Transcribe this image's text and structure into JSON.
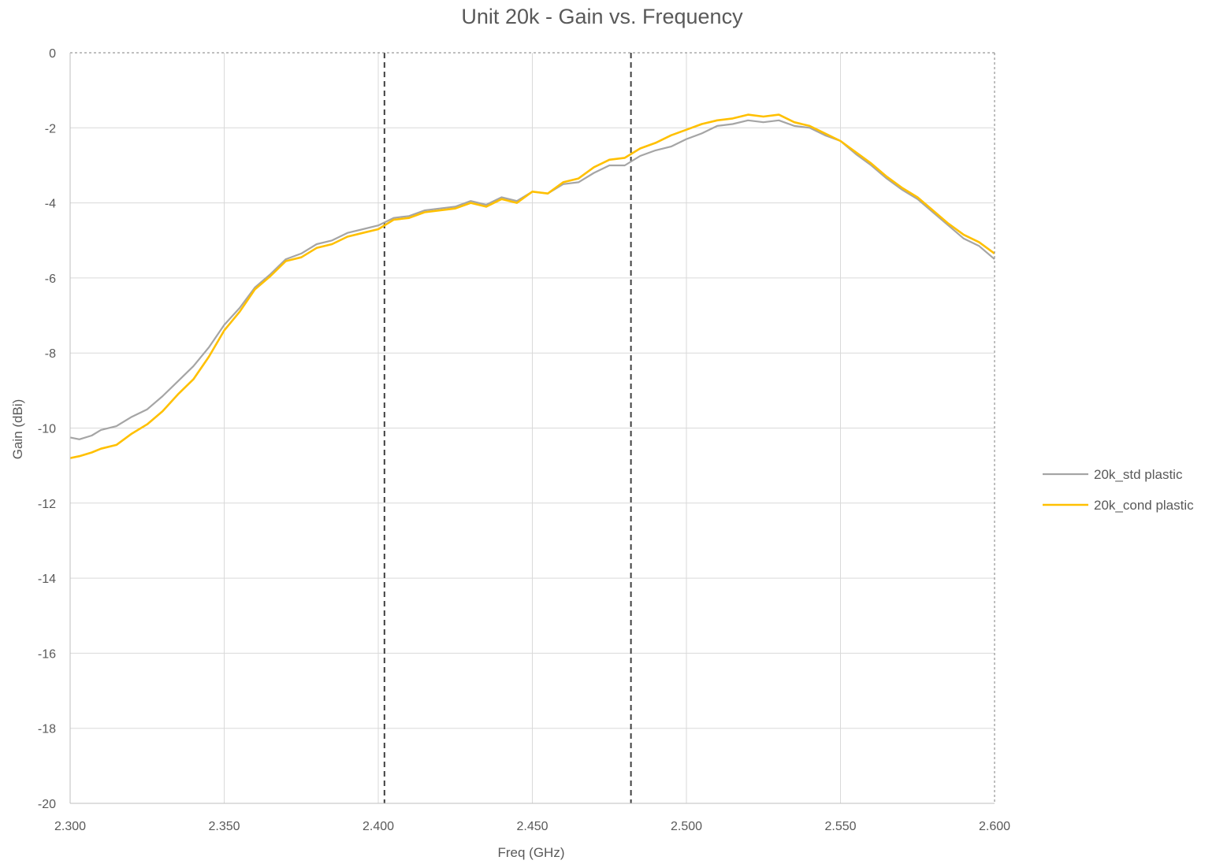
{
  "chart_data": {
    "type": "line",
    "title": "Unit 20k - Gain vs. Frequency",
    "xlabel": "Freq (GHz)",
    "ylabel": "Gain (dBi)",
    "xlim": [
      2.3,
      2.6
    ],
    "ylim": [
      -20,
      0
    ],
    "x_ticks": [
      "2.300",
      "2.350",
      "2.400",
      "2.450",
      "2.500",
      "2.550",
      "2.600"
    ],
    "y_ticks": [
      "0",
      "-2",
      "-4",
      "-6",
      "-8",
      "-10",
      "-12",
      "-14",
      "-16",
      "-18",
      "-20"
    ],
    "grid": true,
    "legend_position": "right",
    "markers_dashed_vertical_x": [
      2.402,
      2.482
    ],
    "series": [
      {
        "name": "20k_std plastic",
        "color": "#a5a5a5",
        "x": [
          2.3,
          2.303,
          2.307,
          2.31,
          2.315,
          2.32,
          2.325,
          2.33,
          2.335,
          2.34,
          2.345,
          2.35,
          2.355,
          2.36,
          2.365,
          2.37,
          2.375,
          2.38,
          2.385,
          2.39,
          2.395,
          2.4,
          2.405,
          2.41,
          2.415,
          2.42,
          2.425,
          2.43,
          2.435,
          2.44,
          2.445,
          2.45,
          2.455,
          2.46,
          2.465,
          2.47,
          2.475,
          2.48,
          2.485,
          2.49,
          2.495,
          2.5,
          2.505,
          2.51,
          2.515,
          2.52,
          2.525,
          2.53,
          2.535,
          2.54,
          2.545,
          2.55,
          2.555,
          2.56,
          2.565,
          2.57,
          2.575,
          2.58,
          2.585,
          2.59,
          2.595,
          2.6
        ],
        "y": [
          -10.25,
          -10.3,
          -10.2,
          -10.05,
          -9.95,
          -9.7,
          -9.5,
          -9.15,
          -8.75,
          -8.35,
          -7.85,
          -7.25,
          -6.8,
          -6.25,
          -5.9,
          -5.5,
          -5.35,
          -5.1,
          -5.0,
          -4.8,
          -4.7,
          -4.6,
          -4.4,
          -4.35,
          -4.2,
          -4.15,
          -4.1,
          -3.95,
          -4.05,
          -3.85,
          -3.95,
          -3.7,
          -3.75,
          -3.5,
          -3.45,
          -3.2,
          -3.0,
          -3.0,
          -2.75,
          -2.6,
          -2.5,
          -2.3,
          -2.15,
          -1.95,
          -1.9,
          -1.8,
          -1.85,
          -1.8,
          -1.95,
          -2.0,
          -2.2,
          -2.35,
          -2.7,
          -3.0,
          -3.35,
          -3.65,
          -3.9,
          -4.25,
          -4.6,
          -4.95,
          -5.15,
          -5.5
        ]
      },
      {
        "name": "20k_cond plastic",
        "color": "#ffc000",
        "x": [
          2.3,
          2.303,
          2.307,
          2.31,
          2.315,
          2.32,
          2.325,
          2.33,
          2.335,
          2.34,
          2.345,
          2.35,
          2.355,
          2.36,
          2.365,
          2.37,
          2.375,
          2.38,
          2.385,
          2.39,
          2.395,
          2.4,
          2.405,
          2.41,
          2.415,
          2.42,
          2.425,
          2.43,
          2.435,
          2.44,
          2.445,
          2.45,
          2.455,
          2.46,
          2.465,
          2.47,
          2.475,
          2.48,
          2.485,
          2.49,
          2.495,
          2.5,
          2.505,
          2.51,
          2.515,
          2.52,
          2.525,
          2.53,
          2.535,
          2.54,
          2.545,
          2.55,
          2.555,
          2.56,
          2.565,
          2.57,
          2.575,
          2.58,
          2.585,
          2.59,
          2.595,
          2.6
        ],
        "y": [
          -10.8,
          -10.75,
          -10.65,
          -10.55,
          -10.45,
          -10.15,
          -9.9,
          -9.55,
          -9.1,
          -8.7,
          -8.1,
          -7.4,
          -6.9,
          -6.3,
          -5.95,
          -5.55,
          -5.45,
          -5.2,
          -5.1,
          -4.9,
          -4.8,
          -4.7,
          -4.45,
          -4.4,
          -4.25,
          -4.2,
          -4.15,
          -4.0,
          -4.1,
          -3.9,
          -4.0,
          -3.7,
          -3.75,
          -3.45,
          -3.35,
          -3.05,
          -2.85,
          -2.8,
          -2.55,
          -2.4,
          -2.2,
          -2.05,
          -1.9,
          -1.8,
          -1.75,
          -1.65,
          -1.7,
          -1.65,
          -1.85,
          -1.95,
          -2.15,
          -2.35,
          -2.65,
          -2.95,
          -3.3,
          -3.6,
          -3.85,
          -4.2,
          -4.55,
          -4.85,
          -5.05,
          -5.35
        ]
      }
    ]
  }
}
